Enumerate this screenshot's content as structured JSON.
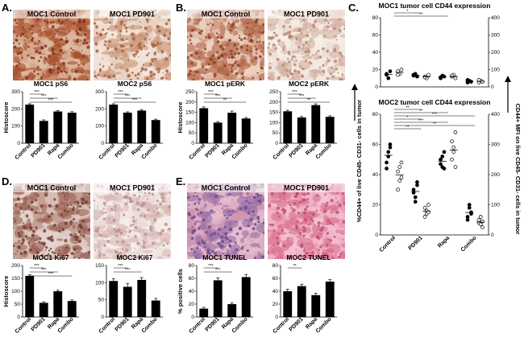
{
  "panels": [
    {
      "id": "A",
      "label": "A."
    },
    {
      "id": "B",
      "label": "B."
    },
    {
      "id": "C",
      "label": "C."
    },
    {
      "id": "D",
      "label": "D."
    },
    {
      "id": "E",
      "label": "E."
    }
  ],
  "images": [
    {
      "id": "A-left",
      "title": "MOC1 Control",
      "colors": [
        "#a8502e",
        "#7a2e18",
        "#c98a6a",
        "#e0c0a8"
      ]
    },
    {
      "id": "A-right",
      "title": "MOC1 PD901",
      "colors": [
        "#c89476",
        "#a85c3c",
        "#e8d2c2",
        "#f2e6dc"
      ]
    },
    {
      "id": "B-left",
      "title": "MOC1 Control",
      "colors": [
        "#b06848",
        "#8a3c22",
        "#d4a088",
        "#ecd4c4"
      ]
    },
    {
      "id": "B-right",
      "title": "MOC1 PD901",
      "colors": [
        "#d4b0a0",
        "#b48470",
        "#eee0d8",
        "#f6eee8"
      ]
    },
    {
      "id": "D-left",
      "title": "MOC1 Control",
      "colors": [
        "#9a6052",
        "#6e3a30",
        "#c4a096",
        "#e6d6d0"
      ]
    },
    {
      "id": "D-right",
      "title": "MOC1 PD901",
      "colors": [
        "#d8b8b4",
        "#b89090",
        "#eadcd8",
        "#f6eeec"
      ]
    },
    {
      "id": "E-left",
      "title": "MOC1 Control",
      "colors": [
        "#9870a8",
        "#6a4a88",
        "#d098b0",
        "#e8c0d0"
      ]
    },
    {
      "id": "E-right",
      "title": "MOC1 PD901",
      "colors": [
        "#d87090",
        "#b84c70",
        "#ec9cb4",
        "#f4c4d4"
      ]
    }
  ],
  "y_axis_labels": {
    "histoscore": "Histoscore",
    "positive_cells": "% positive cells"
  },
  "panel_c": {
    "title_top": "MOC1 tumor cell CD44 expression",
    "title_bottom": "MOC2 tumor cell CD44 expression",
    "ylabel_left": "%CD44+ of live CD45- CD31- cells in tumor",
    "ylabel_right": "CD44+ MFI on live CD45- CD31- cells in tumor"
  },
  "chart_data": [
    {
      "type": "bar",
      "title": "MOC1 pS6",
      "categories": [
        "Control",
        "PD901",
        "Rapa",
        "Combo"
      ],
      "values": [
        225,
        130,
        185,
        178
      ],
      "errors": [
        5,
        6,
        5,
        6
      ],
      "ylim": [
        0,
        300
      ],
      "yticks": [
        0,
        100,
        200,
        300
      ],
      "ylabel": "Histoscore",
      "significance": [
        "***",
        "***",
        "***"
      ]
    },
    {
      "type": "bar",
      "title": "MOC2 pS6",
      "categories": [
        "Control",
        "PD901",
        "Rapa",
        "Combo"
      ],
      "values": [
        225,
        178,
        190,
        135
      ],
      "errors": [
        5,
        5,
        5,
        5
      ],
      "ylim": [
        0,
        300
      ],
      "yticks": [
        0,
        100,
        200,
        300
      ],
      "ylabel": "",
      "significance": [
        "***",
        "***",
        "***"
      ]
    },
    {
      "type": "bar",
      "title": "MOC1 pERK",
      "categories": [
        "Control",
        "PD901",
        "Rapa",
        "Combo"
      ],
      "values": [
        170,
        100,
        148,
        120
      ],
      "errors": [
        6,
        5,
        8,
        5
      ],
      "ylim": [
        0,
        250
      ],
      "yticks": [
        0,
        50,
        100,
        150,
        200,
        250
      ],
      "ylabel": "Histoscore",
      "significance": [
        "***",
        "***",
        "**"
      ]
    },
    {
      "type": "bar",
      "title": "MOC2 pERK",
      "categories": [
        "Control",
        "PD901",
        "Rapa",
        "Combo"
      ],
      "values": [
        155,
        125,
        185,
        128
      ],
      "errors": [
        5,
        5,
        6,
        5
      ],
      "ylim": [
        0,
        250
      ],
      "yticks": [
        0,
        50,
        100,
        150,
        200,
        250
      ],
      "ylabel": "",
      "significance": [
        "***",
        "***",
        "**"
      ]
    },
    {
      "type": "scatter",
      "title": "MOC1 tumor cell CD44 expression",
      "categories": [
        "Control",
        "PD901",
        "Rapa",
        "Combo"
      ],
      "series": [
        {
          "values": [
            [
              14,
              10,
              18,
              15
            ],
            [
              13,
              15,
              12,
              14
            ],
            [
              10,
              13,
              12,
              11
            ],
            [
              5,
              7,
              6,
              8
            ]
          ]
        },
        {
          "values": [
            [
              18,
              15,
              20,
              14
            ],
            [
              12,
              10,
              14,
              11
            ],
            [
              12,
              14,
              10,
              13
            ],
            [
              5,
              7,
              6,
              8
            ]
          ]
        }
      ],
      "ylim": [
        0,
        80
      ],
      "yticks": [
        0,
        20,
        40,
        60,
        80
      ],
      "ylim_right": [
        0,
        400
      ],
      "yticks_right": [
        0,
        100,
        200,
        300,
        400
      ],
      "significance": [
        "*",
        "**"
      ]
    },
    {
      "type": "scatter",
      "title": "MOC2 tumor cell CD44 expression",
      "categories": [
        "Control",
        "PD901",
        "Rapa",
        "Combo"
      ],
      "series": [
        {
          "values": [
            [
              48,
              55,
              60,
              44,
              52,
              58
            ],
            [
              30,
              25,
              35,
              28,
              22,
              33
            ],
            [
              50,
              45,
              55,
              47,
              52,
              44
            ],
            [
              12,
              18,
              15,
              10,
              20,
              14
            ]
          ]
        },
        {
          "values": [
            [
              42,
              36,
              48,
              30,
              45,
              38
            ],
            [
              18,
              14,
              20,
              12,
              16,
              15
            ],
            [
              62,
              55,
              68,
              50,
              58,
              45
            ],
            [
              8,
              12,
              5,
              10,
              7,
              9
            ]
          ]
        }
      ],
      "ylim": [
        0,
        80
      ],
      "yticks": [
        0,
        20,
        40,
        60,
        80
      ],
      "ylim_right": [
        0,
        400
      ],
      "yticks_right": [
        0,
        100,
        200,
        300,
        400
      ],
      "significance": [
        "**",
        "**",
        "***",
        "*",
        "***",
        "**",
        "**"
      ]
    },
    {
      "type": "bar",
      "title": "MOC1 Ki67",
      "categories": [
        "Control",
        "PD901",
        "Rapa",
        "Combo"
      ],
      "values": [
        160,
        55,
        100,
        62
      ],
      "errors": [
        5,
        4,
        4,
        4
      ],
      "ylim": [
        0,
        200
      ],
      "yticks": [
        0,
        50,
        100,
        150,
        200
      ],
      "ylabel": "Histoscore",
      "significance": [
        "***",
        "***",
        "***"
      ]
    },
    {
      "type": "bar",
      "title": "MOC2 Ki67",
      "categories": [
        "Control",
        "PD901",
        "Rapa",
        "Combo"
      ],
      "values": [
        105,
        88,
        108,
        48
      ],
      "errors": [
        7,
        10,
        7,
        6
      ],
      "ylim": [
        0,
        150
      ],
      "yticks": [
        0,
        50,
        100,
        150
      ],
      "ylabel": "",
      "significance": [
        "***",
        "***"
      ]
    },
    {
      "type": "bar",
      "title": "MOC1 TUNEL",
      "categories": [
        "Control",
        "PD901",
        "Rapa",
        "Combo"
      ],
      "values": [
        13,
        57,
        20,
        62
      ],
      "errors": [
        2,
        4,
        2,
        4
      ],
      "ylim": [
        0,
        80
      ],
      "yticks": [
        0,
        20,
        40,
        60,
        80
      ],
      "ylabel": "% positive cells",
      "significance": [
        "***",
        "***"
      ]
    },
    {
      "type": "bar",
      "title": "MOC2 TUNEL",
      "categories": [
        "Control",
        "PD901",
        "Rapa",
        "Combo"
      ],
      "values": [
        40,
        48,
        34,
        55
      ],
      "errors": [
        3,
        3,
        3,
        3
      ],
      "ylim": [
        0,
        80
      ],
      "yticks": [
        0,
        20,
        40,
        60,
        80
      ],
      "ylabel": "",
      "significance": [
        "**"
      ]
    }
  ]
}
